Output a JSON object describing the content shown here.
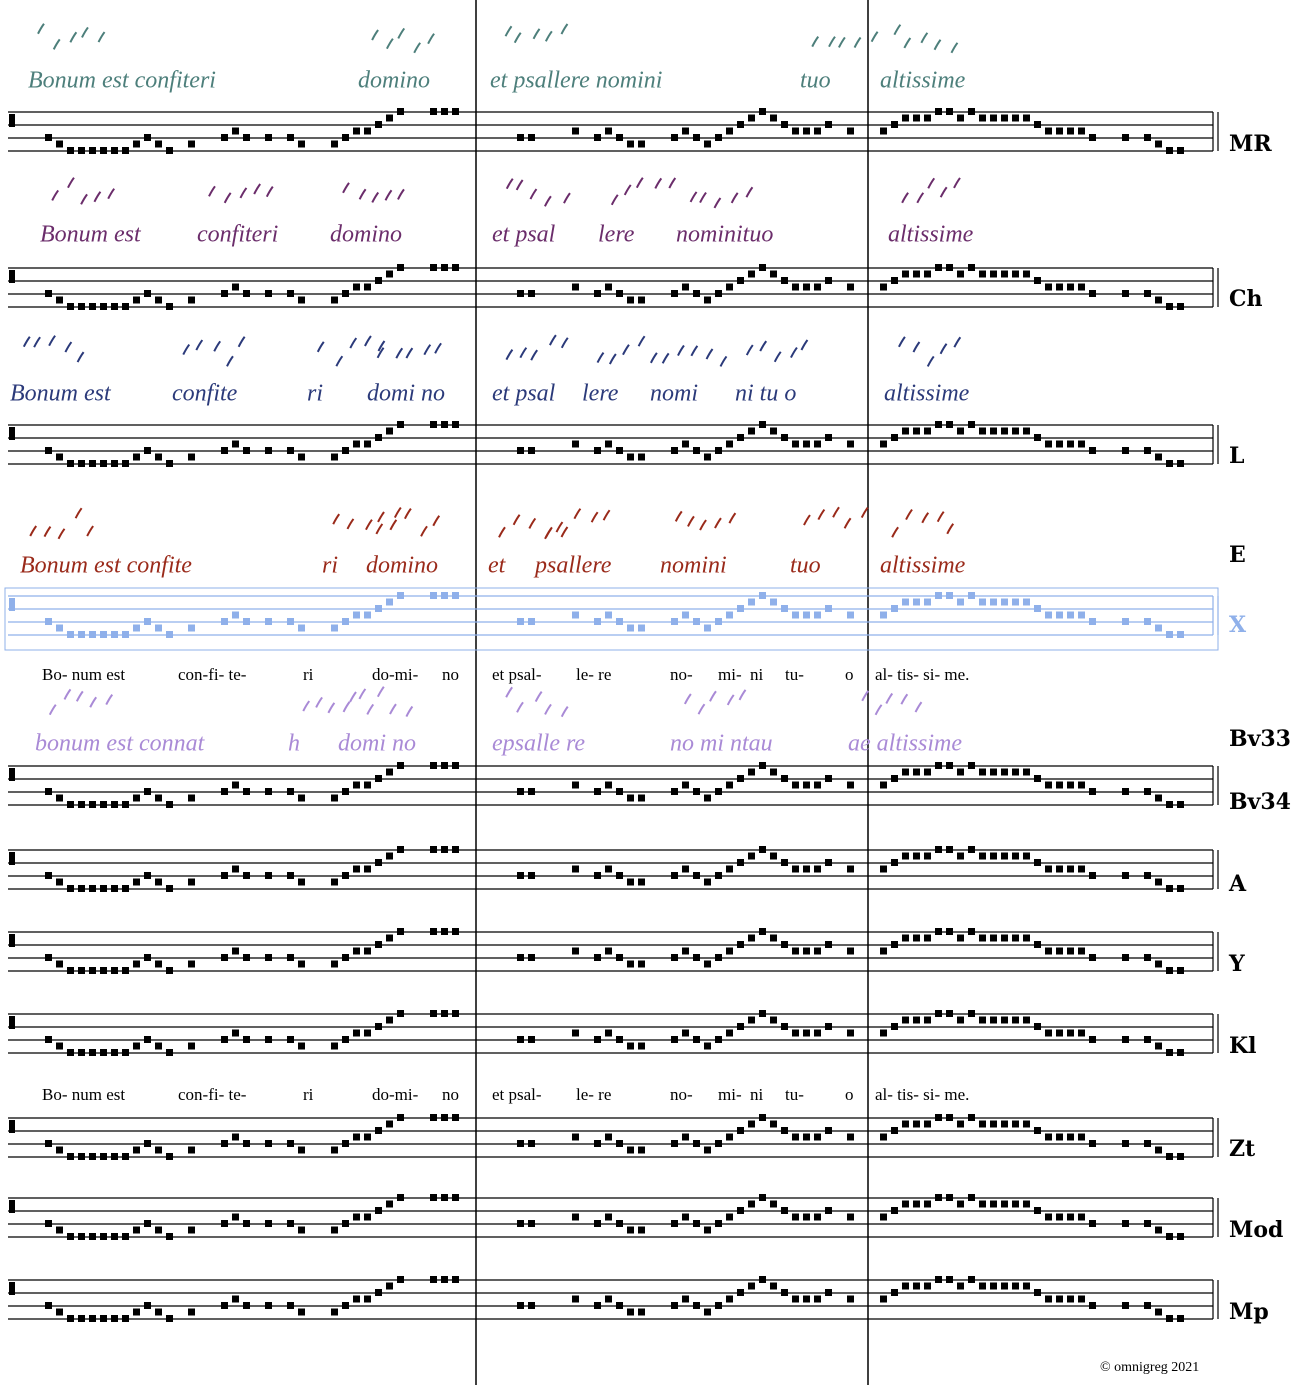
{
  "manuscripts": [
    {
      "color": "#4d7f7b",
      "segments": [
        "Bonum est confiteri",
        "domino",
        "et psallere nomini",
        "tuo",
        "altissime"
      ]
    },
    {
      "color": "#6b2d6b",
      "segments": [
        "Bonum est",
        "confiteri",
        "domino",
        "et psal",
        "lere",
        "nominituo",
        "altissime"
      ]
    },
    {
      "color": "#2b3a7a",
      "segments": [
        "Bonum est",
        "confite",
        "ri",
        "domi no",
        "et psal",
        "lere",
        "nomi",
        "ni tu o",
        "altissime"
      ]
    },
    {
      "color": "#9a2a1a",
      "segments": [
        "Bonum est confite",
        "ri",
        "domino",
        "et",
        "psallere",
        "nomini",
        "tuo",
        "altissime"
      ]
    },
    {
      "color": "#a98ad6",
      "segments": [
        "bonum est connat",
        "h",
        "domi no",
        "epsalle re",
        "no mi ntau",
        "ae altissime"
      ]
    }
  ],
  "sources": [
    {
      "label": "MR",
      "color": "#000000"
    },
    {
      "label": "Ch",
      "color": "#000000"
    },
    {
      "label": "L",
      "color": "#000000"
    },
    {
      "label": "E"
    },
    {
      "label": "X",
      "color": "#8fb0ea"
    },
    {
      "label": "Bv33"
    },
    {
      "label": "Bv34",
      "color": "#000000"
    },
    {
      "label": "A",
      "color": "#000000"
    },
    {
      "label": "Y",
      "color": "#000000"
    },
    {
      "label": "Kl",
      "color": "#000000"
    },
    {
      "label": "Zt",
      "color": "#000000"
    },
    {
      "label": "Mod",
      "color": "#000000"
    },
    {
      "label": "Mp",
      "color": "#000000"
    }
  ],
  "lyrics": [
    [
      "Bo- num est",
      "con-fi- te-",
      "ri",
      "do-mi-",
      "no",
      "et psal-",
      "le- re",
      "no-",
      "mi-",
      "ni",
      "tu-",
      "o",
      "al- tis- si- me."
    ],
    [
      "Bo- num est",
      "con-fi- te-",
      "ri",
      "do-mi-",
      "no",
      "et psal-",
      "le- re",
      "no-",
      "mi-",
      "ni",
      "tu-",
      "o",
      "al- tis- si- me."
    ]
  ],
  "copyright": "© omnigreg 2021"
}
